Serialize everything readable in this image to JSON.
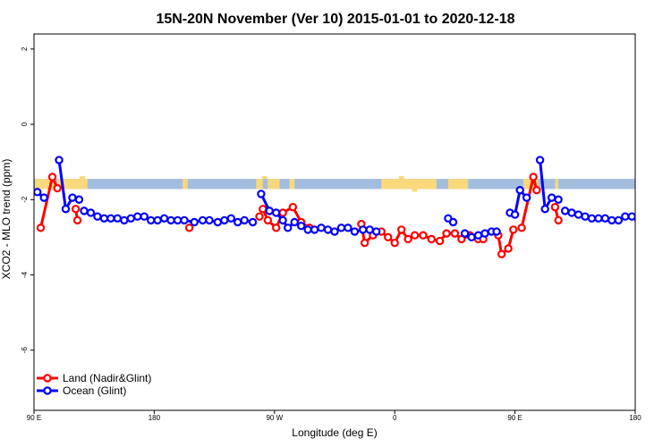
{
  "chart_data": {
    "type": "line",
    "title": "15N-20N November (Ver 10)   2015-01-01 to 2020-12-18",
    "xlabel": "Longitude (deg E)",
    "ylabel": "XCO2 - MLO trend (ppm)",
    "xlim": [
      0,
      360
    ],
    "ylim": [
      -7.6,
      2.4
    ],
    "xticks": [
      {
        "value": 0,
        "label": "90 E"
      },
      {
        "value": 72,
        "label": "180"
      },
      {
        "value": 144,
        "label": "90 W"
      },
      {
        "value": 216,
        "label": "0"
      },
      {
        "value": 288,
        "label": "90 E"
      },
      {
        "value": 360,
        "label": "180"
      }
    ],
    "yticks": [
      {
        "value": 2,
        "label": "2"
      },
      {
        "value": 0,
        "label": "0"
      },
      {
        "value": -2,
        "label": "-2"
      },
      {
        "value": -4,
        "label": "-4"
      },
      {
        "value": -6,
        "label": "-6"
      }
    ],
    "grid": false,
    "legend_position": "bottom-left",
    "map_band": {
      "ylim": [
        -1.72,
        -1.45
      ],
      "ocean_color": "#a3bddf",
      "land_color": "#fad87c"
    },
    "series": [
      {
        "name": "Land (Nadir&Glint)",
        "color": "#ff0000",
        "segments": [
          [
            [
              4,
              -2.75
            ],
            [
              11,
              -1.4
            ],
            [
              14,
              -1.7
            ]
          ],
          [
            [
              25,
              -2.25
            ],
            [
              26,
              -2.55
            ]
          ],
          [
            [
              93,
              -2.75
            ]
          ],
          [
            [
              135,
              -2.45
            ]
          ],
          [
            [
              137,
              -2.25
            ],
            [
              140,
              -2.55
            ],
            [
              145,
              -2.75
            ],
            [
              149,
              -2.35
            ],
            [
              155,
              -2.2
            ],
            [
              160,
              -2.6
            ],
            [
              165,
              -2.75
            ]
          ],
          [
            [
              196,
              -2.65
            ],
            [
              198,
              -3.15
            ],
            [
              203,
              -2.95
            ],
            [
              208,
              -2.85
            ],
            [
              212,
              -3.0
            ],
            [
              216,
              -3.15
            ],
            [
              220,
              -2.8
            ],
            [
              224,
              -3.05
            ],
            [
              228,
              -2.95
            ],
            [
              233,
              -2.95
            ],
            [
              238,
              -3.05
            ],
            [
              243,
              -3.1
            ],
            [
              247,
              -2.9
            ],
            [
              252,
              -2.9
            ],
            [
              256,
              -3.05
            ],
            [
              261,
              -2.95
            ],
            [
              266,
              -3.05
            ],
            [
              269,
              -3.05
            ]
          ],
          [
            [
              278,
              -2.95
            ],
            [
              280,
              -3.45
            ],
            [
              284,
              -3.3
            ],
            [
              287,
              -2.8
            ]
          ],
          [
            [
              292,
              -2.75
            ],
            [
              299,
              -1.4
            ],
            [
              301,
              -1.75
            ]
          ],
          [
            [
              312,
              -2.2
            ],
            [
              314,
              -2.55
            ]
          ]
        ]
      },
      {
        "name": "Ocean (Glint)",
        "color": "#0000ff",
        "segments": [
          [
            [
              2,
              -1.8
            ],
            [
              6,
              -1.95
            ]
          ],
          [
            [
              15,
              -0.95
            ],
            [
              19,
              -2.25
            ],
            [
              23,
              -1.95
            ],
            [
              27,
              -2.0
            ]
          ],
          [
            [
              30,
              -2.3
            ],
            [
              34,
              -2.35
            ],
            [
              38,
              -2.45
            ],
            [
              42,
              -2.5
            ],
            [
              46,
              -2.5
            ],
            [
              50,
              -2.5
            ],
            [
              54,
              -2.55
            ],
            [
              58,
              -2.5
            ],
            [
              62,
              -2.45
            ],
            [
              66,
              -2.45
            ],
            [
              70,
              -2.55
            ],
            [
              74,
              -2.55
            ],
            [
              78,
              -2.5
            ],
            [
              82,
              -2.55
            ],
            [
              86,
              -2.55
            ],
            [
              90,
              -2.55
            ],
            [
              96,
              -2.6
            ],
            [
              101,
              -2.55
            ],
            [
              105,
              -2.55
            ],
            [
              110,
              -2.6
            ],
            [
              114,
              -2.55
            ],
            [
              118,
              -2.5
            ],
            [
              122,
              -2.6
            ],
            [
              126,
              -2.55
            ],
            [
              131,
              -2.6
            ]
          ],
          [
            [
              136,
              -1.85
            ],
            [
              141,
              -2.3
            ],
            [
              145,
              -2.35
            ],
            [
              149,
              -2.55
            ],
            [
              152,
              -2.75
            ],
            [
              156,
              -2.6
            ],
            [
              160,
              -2.7
            ],
            [
              164,
              -2.8
            ],
            [
              168,
              -2.8
            ],
            [
              172,
              -2.75
            ],
            [
              176,
              -2.8
            ],
            [
              180,
              -2.85
            ],
            [
              184,
              -2.75
            ],
            [
              188,
              -2.75
            ],
            [
              192,
              -2.85
            ],
            [
              197,
              -2.8
            ],
            [
              201,
              -2.8
            ],
            [
              205,
              -2.85
            ]
          ],
          [
            [
              248,
              -2.5
            ],
            [
              251,
              -2.6
            ]
          ],
          [
            [
              258,
              -2.9
            ],
            [
              262,
              -3.0
            ],
            [
              266,
              -2.95
            ],
            [
              270,
              -2.9
            ],
            [
              274,
              -2.85
            ],
            [
              277,
              -2.85
            ]
          ],
          [
            [
              285,
              -2.35
            ],
            [
              288,
              -2.4
            ],
            [
              291,
              -1.75
            ],
            [
              295,
              -1.95
            ]
          ],
          [
            [
              303,
              -0.95
            ],
            [
              306,
              -2.25
            ],
            [
              310,
              -1.95
            ],
            [
              314,
              -2.0
            ]
          ],
          [
            [
              318,
              -2.3
            ],
            [
              322,
              -2.35
            ],
            [
              326,
              -2.4
            ],
            [
              330,
              -2.45
            ],
            [
              334,
              -2.5
            ],
            [
              338,
              -2.5
            ],
            [
              342,
              -2.5
            ],
            [
              346,
              -2.55
            ],
            [
              350,
              -2.55
            ],
            [
              354,
              -2.45
            ],
            [
              358,
              -2.45
            ],
            [
              362,
              -2.55
            ]
          ]
        ]
      }
    ]
  }
}
